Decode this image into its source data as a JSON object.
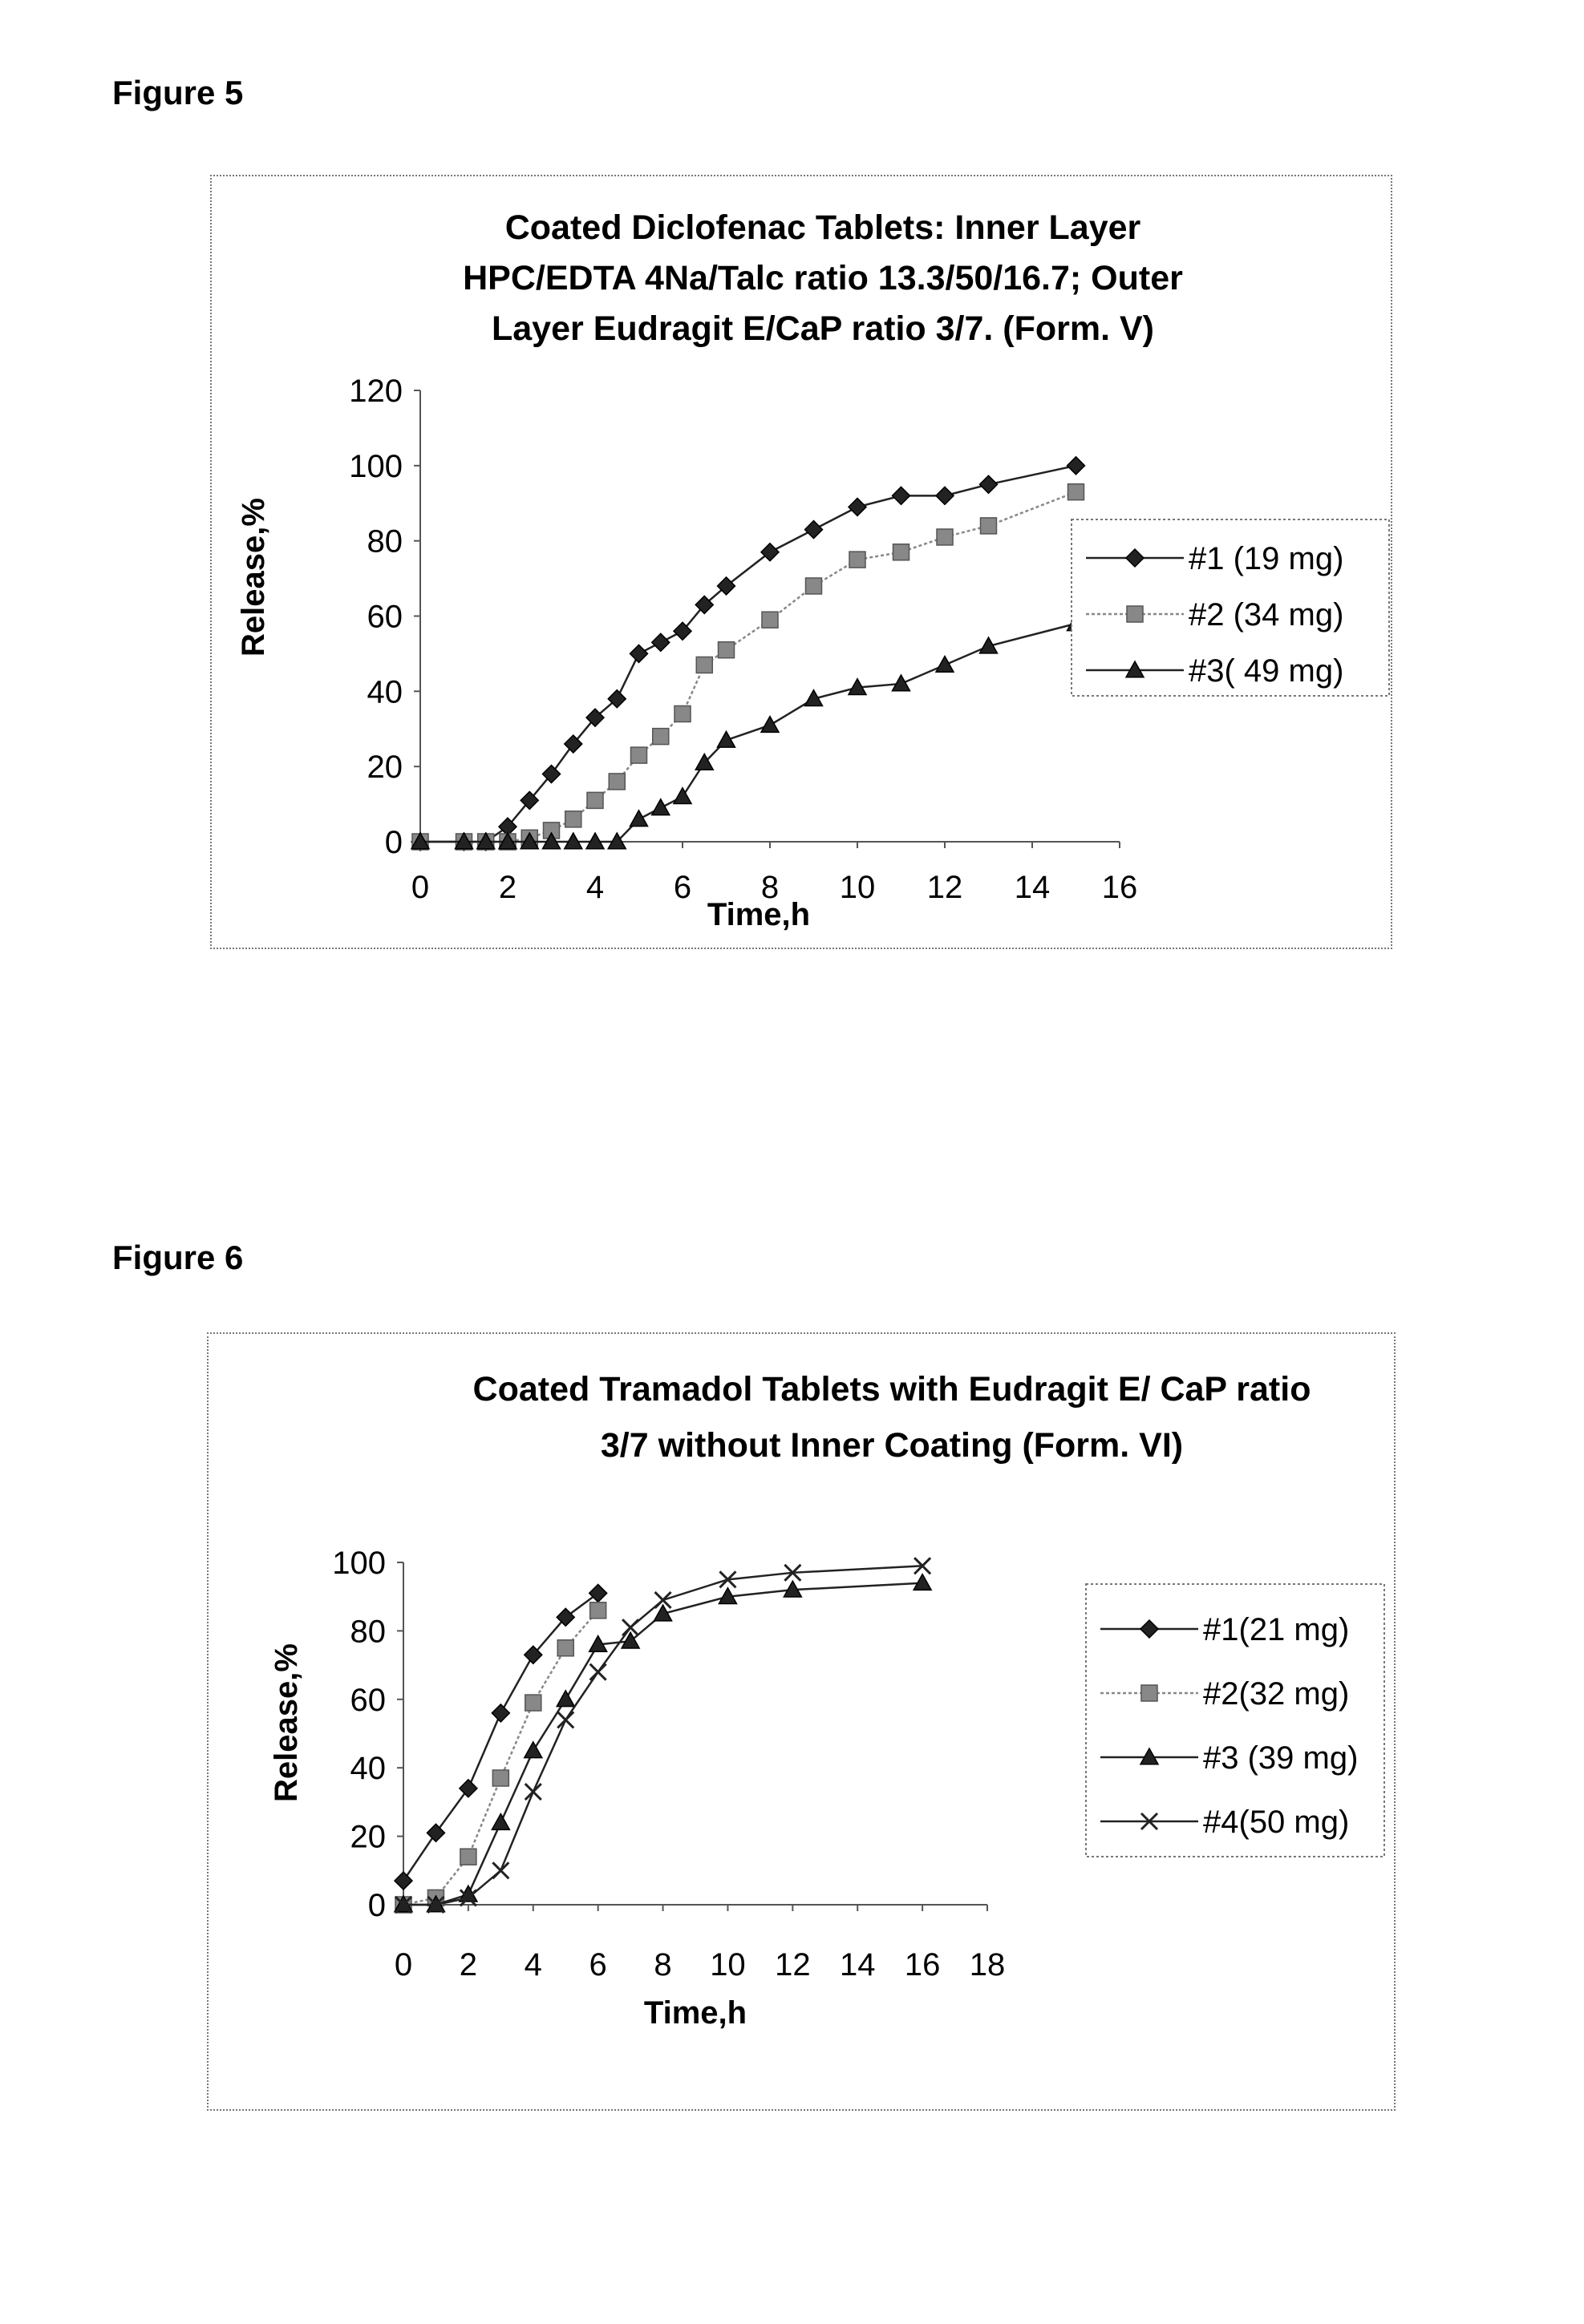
{
  "figures": [
    {
      "label": "Figure 5"
    },
    {
      "label": "Figure 6"
    }
  ],
  "chart_data": [
    {
      "type": "line",
      "title_lines": [
        "Coated Diclofenac Tablets:  Inner Layer",
        "HPC/EDTA 4Na/Talc ratio 13.3/50/16.7; Outer",
        "Layer Eudragit E/CaP ratio 3/7. (Form. V)"
      ],
      "xlabel": "Time,h",
      "ylabel": "Release,%",
      "xlim": [
        0,
        16
      ],
      "ylim": [
        0,
        120
      ],
      "xticks": [
        "0",
        "2",
        "4",
        "6",
        "8",
        "10",
        "12",
        "14",
        "16"
      ],
      "yticks": [
        "0",
        "20",
        "40",
        "60",
        "80",
        "100",
        "120"
      ],
      "grid": false,
      "legend_position": "right",
      "series": [
        {
          "name": "#1 (19 mg)",
          "marker": "diamond",
          "color": "#222222",
          "x": [
            0,
            1,
            1.5,
            2,
            2.5,
            3,
            3.5,
            4,
            4.5,
            5,
            5.5,
            6,
            6.5,
            7,
            8,
            9,
            10,
            11,
            12,
            13,
            15
          ],
          "y": [
            0,
            0,
            0,
            4,
            11,
            18,
            26,
            33,
            38,
            50,
            53,
            56,
            63,
            68,
            77,
            83,
            89,
            92,
            92,
            95,
            100
          ]
        },
        {
          "name": "#2 (34 mg)",
          "marker": "square",
          "color": "#888888",
          "x": [
            0,
            1,
            1.5,
            2,
            2.5,
            3,
            3.5,
            4,
            4.5,
            5,
            5.5,
            6,
            6.5,
            7,
            8,
            9,
            10,
            11,
            12,
            13,
            15
          ],
          "y": [
            0,
            0,
            0,
            0,
            1,
            3,
            6,
            11,
            16,
            23,
            28,
            34,
            47,
            51,
            59,
            68,
            75,
            77,
            81,
            84,
            93
          ]
        },
        {
          "name": "#3( 49 mg)",
          "marker": "triangle",
          "color": "#222222",
          "x": [
            0,
            1,
            1.5,
            2,
            2.5,
            3,
            3.5,
            4,
            4.5,
            5,
            5.5,
            6,
            6.5,
            7,
            8,
            9,
            10,
            11,
            12,
            13,
            15
          ],
          "y": [
            0,
            0,
            0,
            0,
            0,
            0,
            0,
            0,
            0,
            6,
            9,
            12,
            21,
            27,
            31,
            38,
            41,
            42,
            47,
            52,
            58
          ]
        }
      ]
    },
    {
      "type": "line",
      "title_lines": [
        "Coated Tramadol Tablets with Eudragit E/ CaP ratio",
        "3/7 without Inner Coating (Form. VI)"
      ],
      "xlabel": "Time,h",
      "ylabel": "Release,%",
      "xlim": [
        0,
        18
      ],
      "ylim": [
        0,
        100
      ],
      "xticks": [
        "0",
        "2",
        "4",
        "6",
        "8",
        "10",
        "12",
        "14",
        "16",
        "18"
      ],
      "yticks": [
        "0",
        "20",
        "40",
        "60",
        "80",
        "100"
      ],
      "grid": false,
      "legend_position": "right",
      "series": [
        {
          "name": "#1(21 mg)",
          "marker": "diamond",
          "color": "#222222",
          "x": [
            0,
            1,
            2,
            3,
            4,
            5,
            6
          ],
          "y": [
            7,
            21,
            34,
            56,
            73,
            84,
            91
          ]
        },
        {
          "name": "#2(32 mg)",
          "marker": "square",
          "color": "#888888",
          "x": [
            0,
            1,
            2,
            3,
            4,
            5,
            6
          ],
          "y": [
            0,
            2,
            14,
            37,
            59,
            75,
            86
          ]
        },
        {
          "name": "#3 (39 mg)",
          "marker": "triangle",
          "color": "#222222",
          "x": [
            0,
            1,
            2,
            3,
            4,
            5,
            6,
            7,
            8,
            10,
            12,
            16
          ],
          "y": [
            0,
            0,
            3,
            24,
            45,
            60,
            76,
            77,
            85,
            90,
            92,
            94
          ]
        },
        {
          "name": "#4(50 mg)",
          "marker": "x",
          "color": "#222222",
          "x": [
            0,
            1,
            2,
            3,
            4,
            5,
            6,
            7,
            8,
            10,
            12,
            16
          ],
          "y": [
            0,
            0,
            2,
            10,
            33,
            54,
            68,
            81,
            89,
            95,
            97,
            99
          ]
        }
      ]
    }
  ]
}
